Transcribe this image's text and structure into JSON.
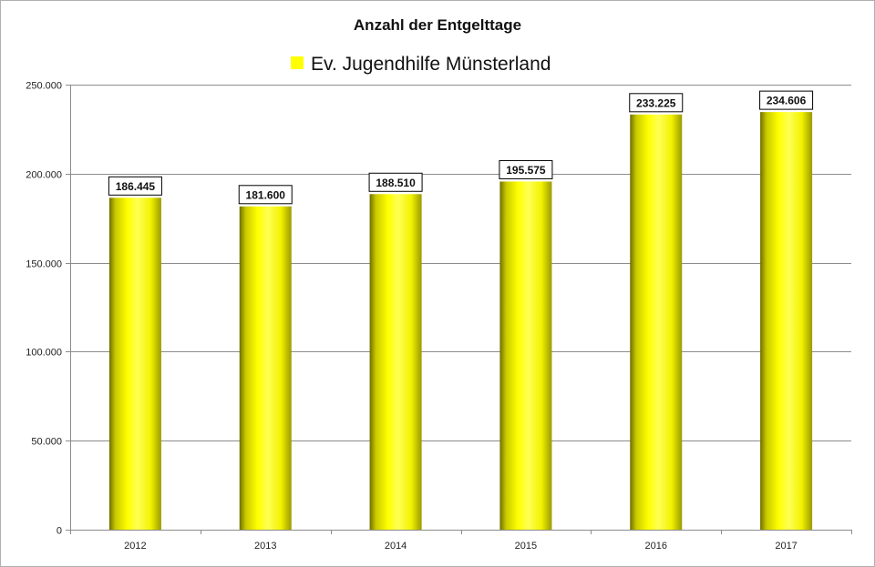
{
  "chart_data": {
    "type": "bar",
    "title": "Anzahl der Entgelttage",
    "xlabel": "",
    "ylabel": "",
    "categories": [
      "2012",
      "2013",
      "2014",
      "2015",
      "2016",
      "2017"
    ],
    "series": [
      {
        "name": "Ev. Jugendhilfe Münsterland",
        "values": [
          186445,
          181600,
          188510,
          195575,
          233225,
          234606
        ],
        "color": "#ffff00"
      }
    ],
    "data_labels": [
      "186.445",
      "181.600",
      "188.510",
      "195.575",
      "233.225",
      "234.606"
    ],
    "ylim": [
      0,
      250000
    ],
    "yticks": [
      0,
      50000,
      100000,
      150000,
      200000,
      250000
    ],
    "ytick_labels": [
      "0",
      "50.000",
      "100.000",
      "150.000",
      "200.000",
      "250.000"
    ],
    "grid": true,
    "legend_position": "top-center"
  }
}
